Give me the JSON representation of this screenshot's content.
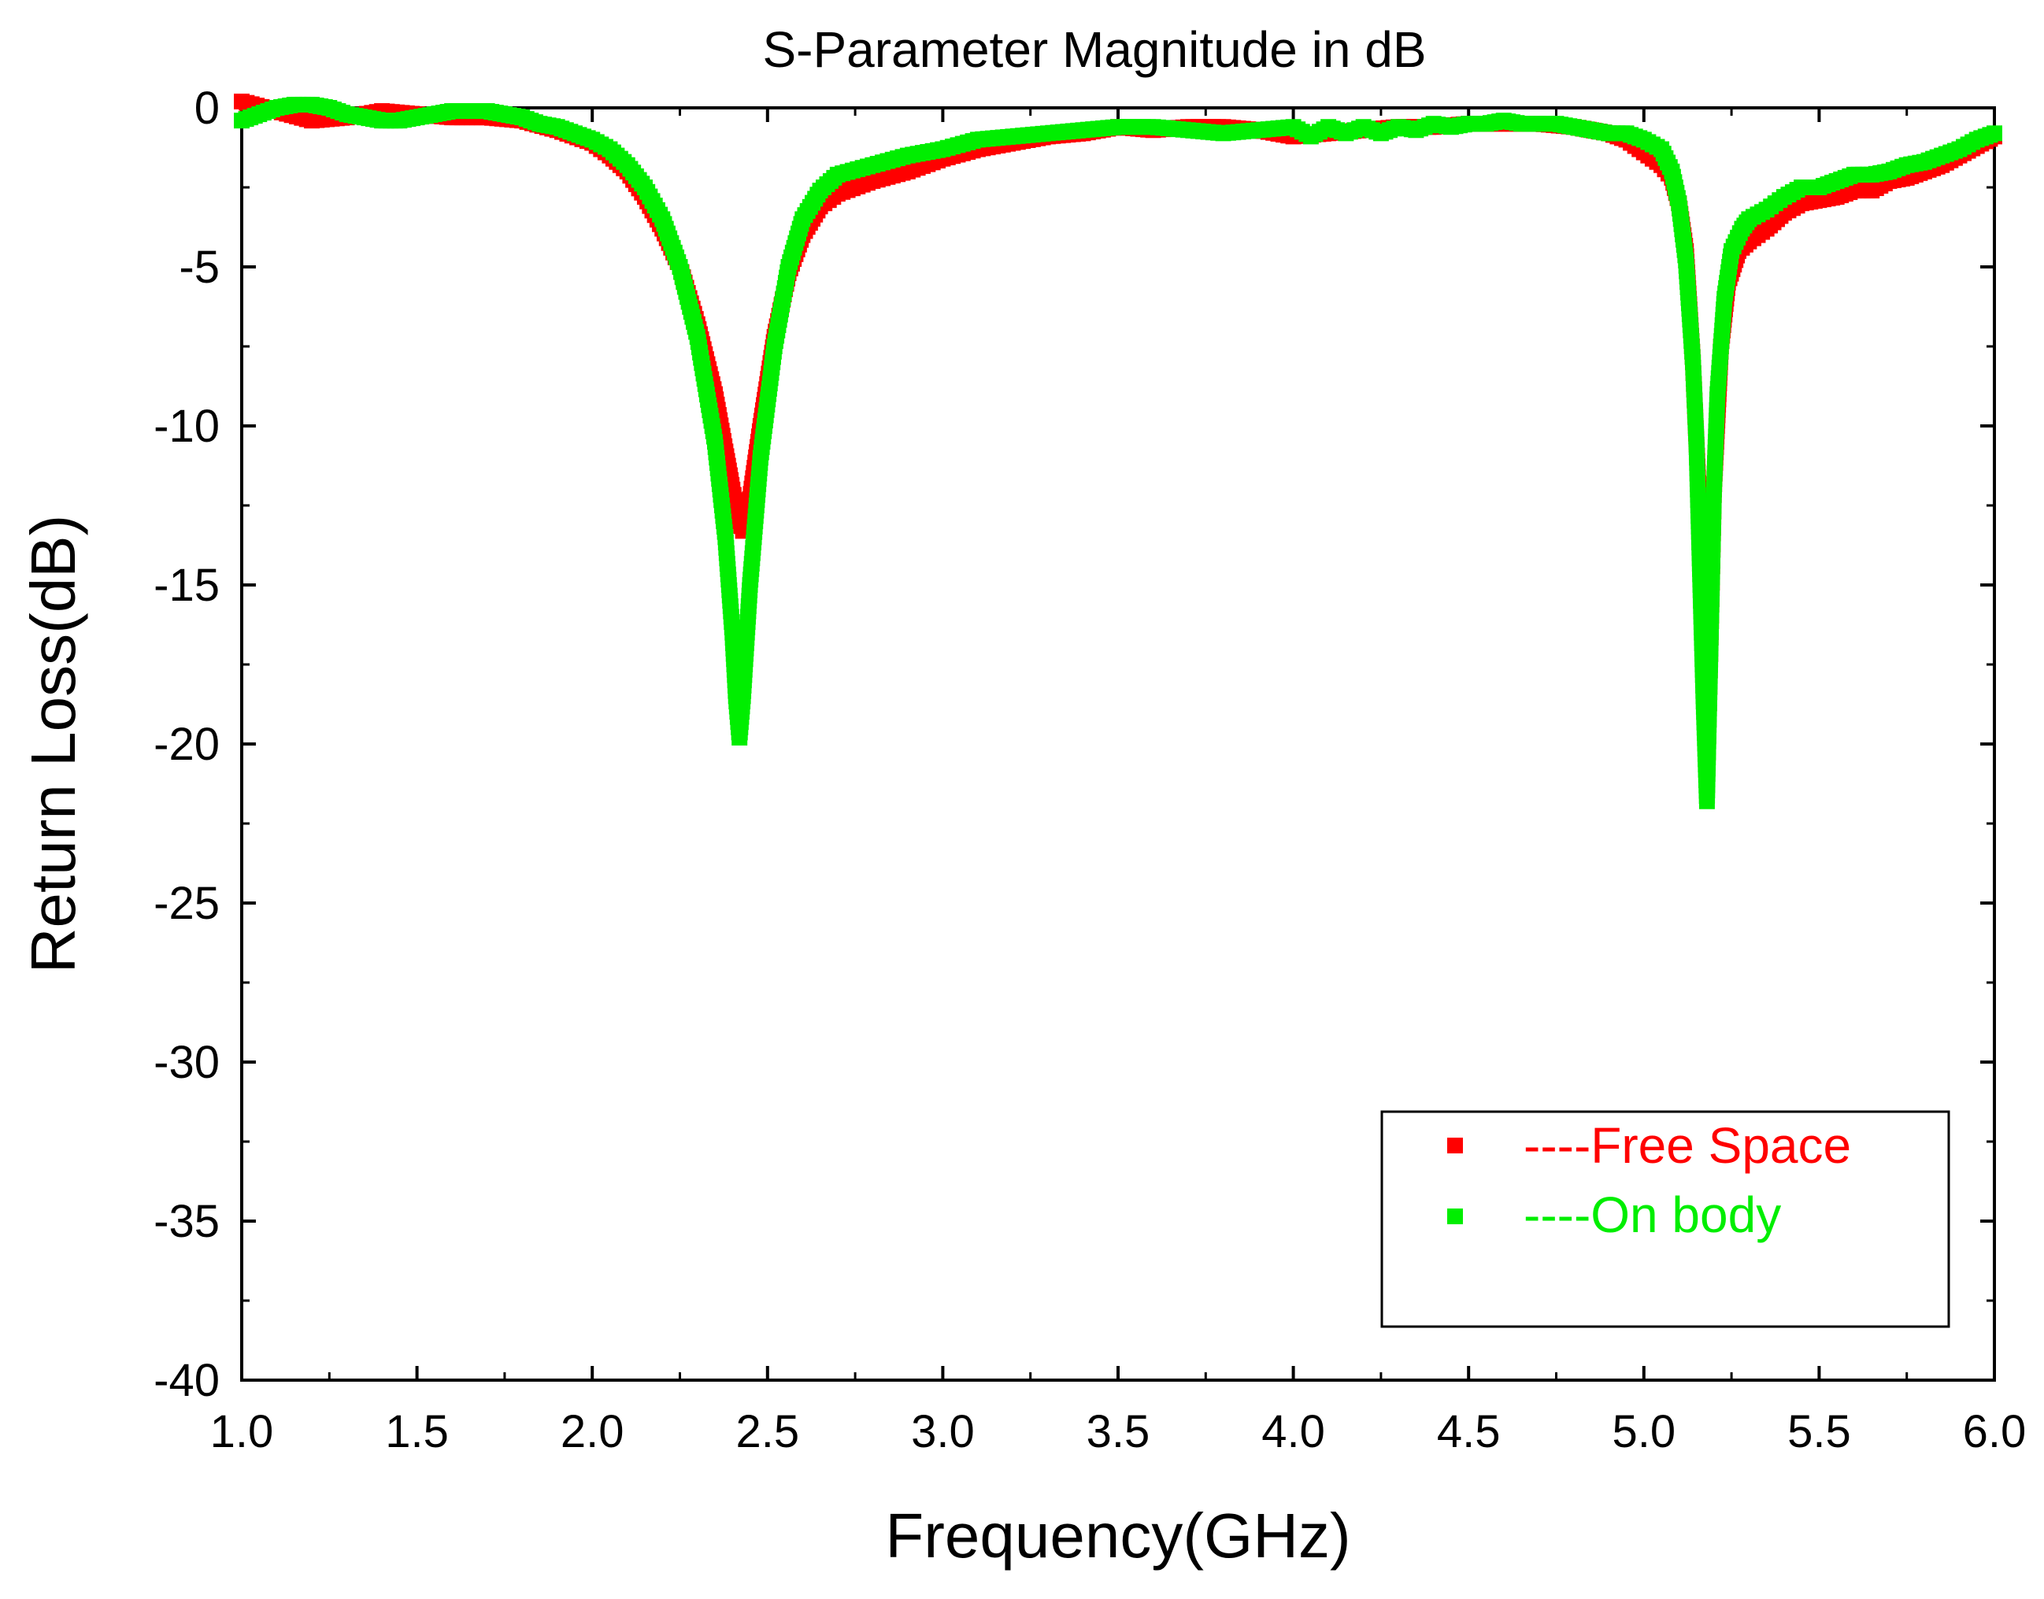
{
  "chart_data": {
    "type": "scatter",
    "title": "S-Parameter Magnitude in dB",
    "xlabel": "Frequency(GHz)",
    "ylabel": "Return Loss(dB)",
    "xlim": [
      1.0,
      6.0
    ],
    "ylim": [
      -40,
      0
    ],
    "x_ticks": [
      "1.0",
      "1.5",
      "2.0",
      "2.5",
      "3.0",
      "3.5",
      "4.0",
      "4.5",
      "5.0",
      "5.5",
      "6.0"
    ],
    "y_ticks": [
      "0",
      "-5",
      "-10",
      "-15",
      "-20",
      "-25",
      "-30",
      "-35",
      "-40"
    ],
    "grid": false,
    "legend_position": "bottom-right",
    "series": [
      {
        "name": "----Free Space",
        "color": "#ff0000",
        "points": [
          [
            1.0,
            0.2
          ],
          [
            1.1,
            -0.1
          ],
          [
            1.2,
            -0.4
          ],
          [
            1.3,
            -0.3
          ],
          [
            1.4,
            -0.1
          ],
          [
            1.5,
            -0.2
          ],
          [
            1.6,
            -0.3
          ],
          [
            1.7,
            -0.3
          ],
          [
            1.8,
            -0.4
          ],
          [
            1.9,
            -0.7
          ],
          [
            2.0,
            -1.1
          ],
          [
            2.05,
            -1.5
          ],
          [
            2.1,
            -2.0
          ],
          [
            2.15,
            -2.8
          ],
          [
            2.2,
            -3.8
          ],
          [
            2.25,
            -5.0
          ],
          [
            2.3,
            -6.8
          ],
          [
            2.35,
            -9.0
          ],
          [
            2.38,
            -10.8
          ],
          [
            2.4,
            -12.0
          ],
          [
            2.42,
            -13.0
          ],
          [
            2.43,
            -13.3
          ],
          [
            2.45,
            -12.3
          ],
          [
            2.48,
            -10.0
          ],
          [
            2.52,
            -7.2
          ],
          [
            2.56,
            -5.2
          ],
          [
            2.6,
            -4.0
          ],
          [
            2.65,
            -3.1
          ],
          [
            2.7,
            -2.7
          ],
          [
            2.8,
            -2.3
          ],
          [
            2.9,
            -2.0
          ],
          [
            3.0,
            -1.6
          ],
          [
            3.1,
            -1.3
          ],
          [
            3.2,
            -1.1
          ],
          [
            3.3,
            -0.9
          ],
          [
            3.4,
            -0.8
          ],
          [
            3.5,
            -0.6
          ],
          [
            3.6,
            -0.7
          ],
          [
            3.7,
            -0.6
          ],
          [
            3.8,
            -0.6
          ],
          [
            3.9,
            -0.7
          ],
          [
            4.0,
            -0.9
          ],
          [
            4.1,
            -0.8
          ],
          [
            4.2,
            -0.7
          ],
          [
            4.3,
            -0.6
          ],
          [
            4.4,
            -0.6
          ],
          [
            4.5,
            -0.5
          ],
          [
            4.6,
            -0.5
          ],
          [
            4.7,
            -0.5
          ],
          [
            4.8,
            -0.6
          ],
          [
            4.9,
            -0.8
          ],
          [
            4.95,
            -1.0
          ],
          [
            5.0,
            -1.4
          ],
          [
            5.05,
            -1.8
          ],
          [
            5.08,
            -2.2
          ],
          [
            5.1,
            -3.0
          ],
          [
            5.12,
            -4.5
          ],
          [
            5.14,
            -8.0
          ],
          [
            5.16,
            -13.0
          ],
          [
            5.17,
            -17.0
          ],
          [
            5.18,
            -21.5
          ],
          [
            5.19,
            -17.0
          ],
          [
            5.2,
            -12.0
          ],
          [
            5.22,
            -7.5
          ],
          [
            5.24,
            -5.5
          ],
          [
            5.27,
            -4.5
          ],
          [
            5.3,
            -4.2
          ],
          [
            5.35,
            -3.8
          ],
          [
            5.4,
            -3.3
          ],
          [
            5.45,
            -3.0
          ],
          [
            5.5,
            -2.9
          ],
          [
            5.55,
            -2.8
          ],
          [
            5.6,
            -2.6
          ],
          [
            5.65,
            -2.6
          ],
          [
            5.7,
            -2.3
          ],
          [
            5.75,
            -2.2
          ],
          [
            5.8,
            -2.0
          ],
          [
            5.85,
            -1.8
          ],
          [
            5.9,
            -1.5
          ],
          [
            5.95,
            -1.2
          ],
          [
            6.0,
            -0.9
          ]
        ]
      },
      {
        "name": "----On body",
        "color": "#00ee00",
        "points": [
          [
            1.0,
            -0.4
          ],
          [
            1.05,
            -0.2
          ],
          [
            1.1,
            0.0
          ],
          [
            1.15,
            0.1
          ],
          [
            1.2,
            0.1
          ],
          [
            1.25,
            0.0
          ],
          [
            1.3,
            -0.2
          ],
          [
            1.35,
            -0.3
          ],
          [
            1.4,
            -0.4
          ],
          [
            1.45,
            -0.4
          ],
          [
            1.5,
            -0.3
          ],
          [
            1.55,
            -0.2
          ],
          [
            1.6,
            -0.1
          ],
          [
            1.65,
            -0.1
          ],
          [
            1.7,
            -0.1
          ],
          [
            1.75,
            -0.2
          ],
          [
            1.8,
            -0.3
          ],
          [
            1.85,
            -0.5
          ],
          [
            1.9,
            -0.6
          ],
          [
            1.95,
            -0.8
          ],
          [
            2.0,
            -1.0
          ],
          [
            2.05,
            -1.3
          ],
          [
            2.1,
            -1.8
          ],
          [
            2.15,
            -2.5
          ],
          [
            2.2,
            -3.5
          ],
          [
            2.25,
            -5.0
          ],
          [
            2.3,
            -7.2
          ],
          [
            2.35,
            -10.5
          ],
          [
            2.38,
            -13.5
          ],
          [
            2.4,
            -16.5
          ],
          [
            2.41,
            -18.5
          ],
          [
            2.42,
            -19.8
          ],
          [
            2.43,
            -18.5
          ],
          [
            2.45,
            -15.0
          ],
          [
            2.48,
            -11.0
          ],
          [
            2.52,
            -7.5
          ],
          [
            2.56,
            -5.0
          ],
          [
            2.6,
            -3.5
          ],
          [
            2.65,
            -2.6
          ],
          [
            2.7,
            -2.1
          ],
          [
            2.8,
            -1.8
          ],
          [
            2.9,
            -1.5
          ],
          [
            3.0,
            -1.3
          ],
          [
            3.1,
            -1.0
          ],
          [
            3.2,
            -0.9
          ],
          [
            3.3,
            -0.8
          ],
          [
            3.4,
            -0.7
          ],
          [
            3.5,
            -0.6
          ],
          [
            3.6,
            -0.6
          ],
          [
            3.7,
            -0.7
          ],
          [
            3.8,
            -0.8
          ],
          [
            3.9,
            -0.7
          ],
          [
            4.0,
            -0.6
          ],
          [
            4.05,
            -0.9
          ],
          [
            4.1,
            -0.6
          ],
          [
            4.15,
            -0.8
          ],
          [
            4.2,
            -0.6
          ],
          [
            4.25,
            -0.8
          ],
          [
            4.3,
            -0.6
          ],
          [
            4.35,
            -0.7
          ],
          [
            4.4,
            -0.5
          ],
          [
            4.45,
            -0.6
          ],
          [
            4.5,
            -0.5
          ],
          [
            4.55,
            -0.5
          ],
          [
            4.6,
            -0.4
          ],
          [
            4.65,
            -0.5
          ],
          [
            4.7,
            -0.5
          ],
          [
            4.75,
            -0.5
          ],
          [
            4.8,
            -0.6
          ],
          [
            4.85,
            -0.7
          ],
          [
            4.9,
            -0.8
          ],
          [
            4.95,
            -0.8
          ],
          [
            5.0,
            -1.0
          ],
          [
            5.05,
            -1.3
          ],
          [
            5.08,
            -2.0
          ],
          [
            5.1,
            -3.0
          ],
          [
            5.12,
            -4.8
          ],
          [
            5.14,
            -8.0
          ],
          [
            5.15,
            -10.5
          ],
          [
            5.16,
            -14.5
          ],
          [
            5.17,
            -18.5
          ],
          [
            5.18,
            -21.8
          ],
          [
            5.19,
            -17.0
          ],
          [
            5.2,
            -12.0
          ],
          [
            5.21,
            -9.0
          ],
          [
            5.23,
            -6.0
          ],
          [
            5.25,
            -4.5
          ],
          [
            5.28,
            -3.8
          ],
          [
            5.3,
            -3.5
          ],
          [
            5.35,
            -3.2
          ],
          [
            5.4,
            -2.8
          ],
          [
            5.45,
            -2.5
          ],
          [
            5.5,
            -2.5
          ],
          [
            5.55,
            -2.3
          ],
          [
            5.6,
            -2.1
          ],
          [
            5.65,
            -2.1
          ],
          [
            5.7,
            -2.0
          ],
          [
            5.75,
            -1.8
          ],
          [
            5.8,
            -1.7
          ],
          [
            5.85,
            -1.5
          ],
          [
            5.9,
            -1.3
          ],
          [
            5.95,
            -1.0
          ],
          [
            6.0,
            -0.8
          ]
        ]
      }
    ]
  }
}
